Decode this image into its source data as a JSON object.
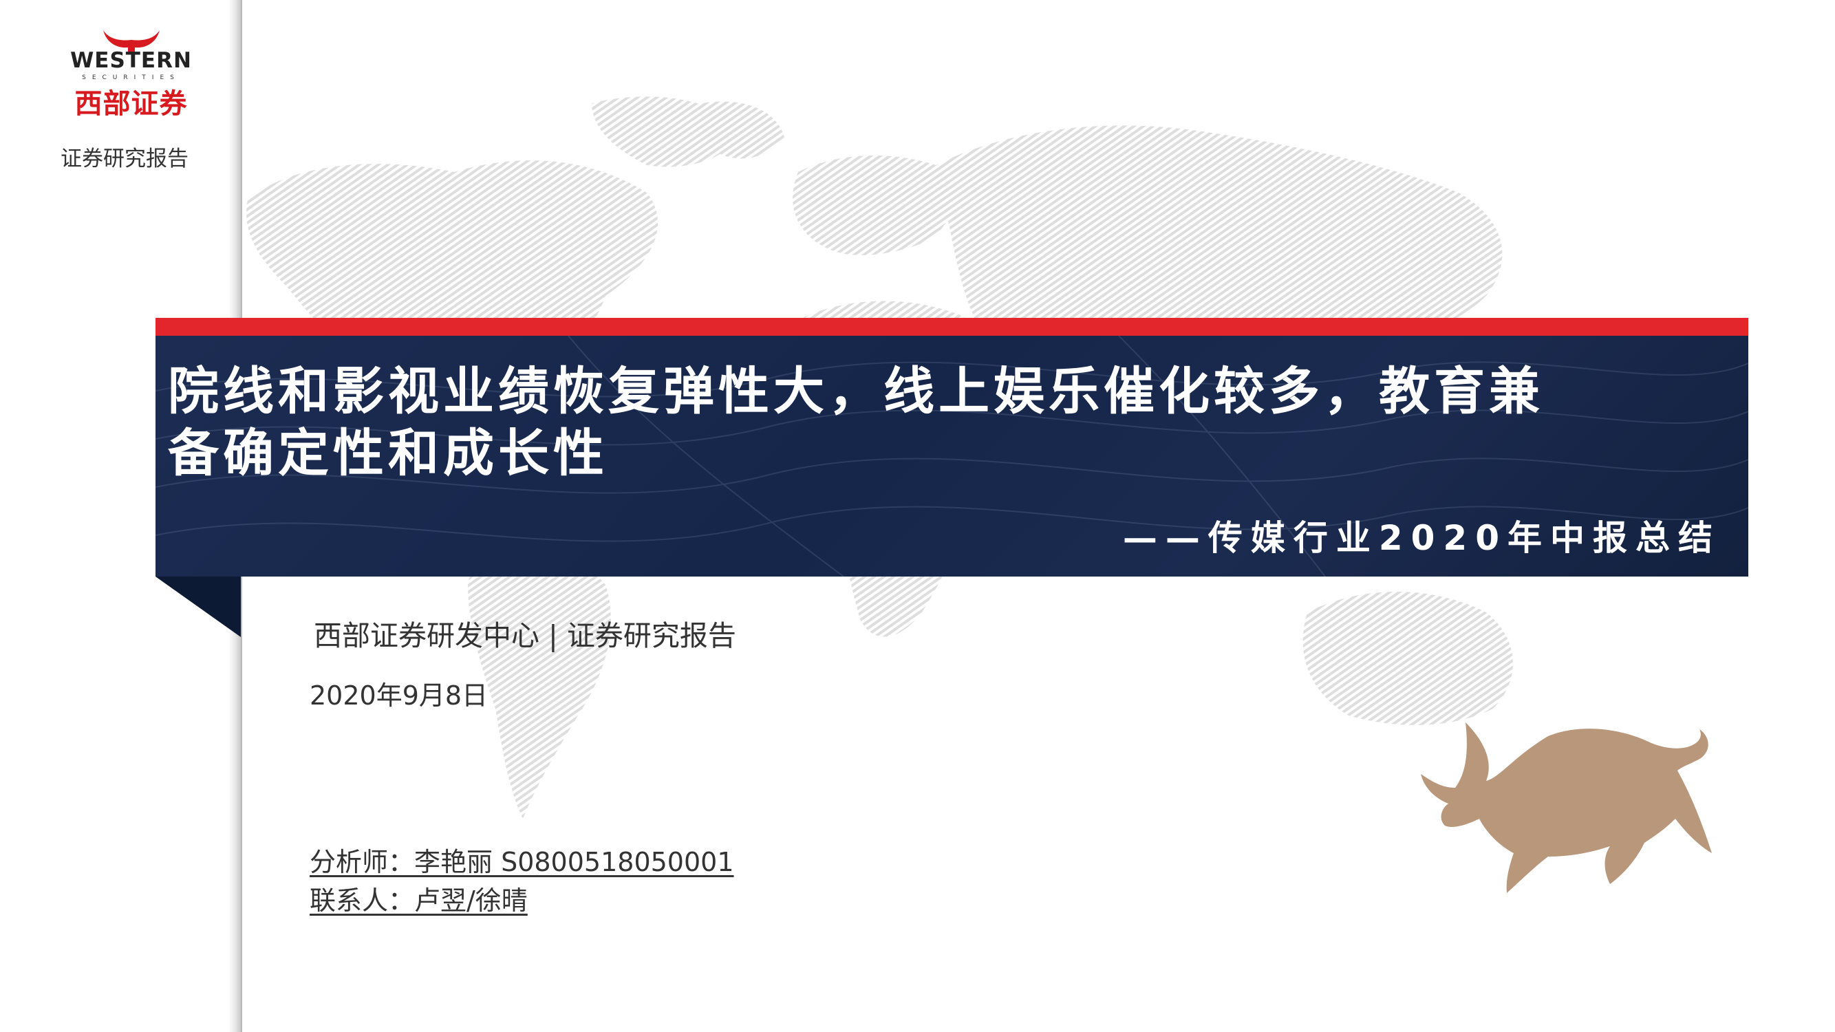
{
  "logo": {
    "en": "WESTERN",
    "sub": "SECURITIES",
    "cn": "西部证券",
    "brand_color": "#d71920"
  },
  "header": {
    "label": "证券研究报告"
  },
  "banner": {
    "title_line1": "院线和影视业绩恢复弹性大，线上娱乐催化较多，教育兼",
    "title_line2": "备确定性和成长性",
    "subtitle": "——传媒行业2020年中报总结",
    "background_color": "#1b2b50",
    "stripe_color": "#e3262b"
  },
  "meta": {
    "org": "西部证券研发中心 | 证券研究报告",
    "date": "2020年9月8日",
    "analyst": "分析师：李艳丽 S0800518050001",
    "contact": "联系人：卢翌/徐晴"
  },
  "decorations": {
    "background": "world-map-watermark",
    "mascot": "bull-icon",
    "mascot_color": "#b8977a"
  }
}
